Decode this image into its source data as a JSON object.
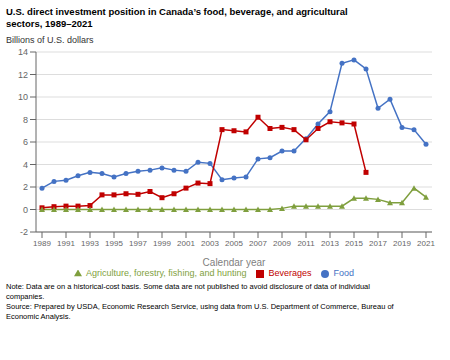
{
  "chart_data": {
    "type": "line",
    "title": "U.S. direct investment position in Canada’s food, beverage, and agricultural\nsectors, 1989–2021",
    "ylabel": "Billions of U.S. dollars",
    "xlabel": "Calendar year",
    "note": "Note: Data are on a historical-cost basis. Some data are not published to avoid disclosure of data of individual\ncompanies.\nSource: Prepared by USDA, Economic Research Service, using data from U.S. Department of Commerce, Bureau of\nEconomic Analysis.",
    "x": [
      1989,
      1990,
      1991,
      1992,
      1993,
      1994,
      1995,
      1996,
      1997,
      1998,
      1999,
      2000,
      2001,
      2002,
      2003,
      2004,
      2005,
      2006,
      2007,
      2008,
      2009,
      2010,
      2011,
      2012,
      2013,
      2014,
      2015,
      2016,
      2017,
      2018,
      2019,
      2020,
      2021
    ],
    "series": [
      {
        "name": "Food",
        "color": "#4472C4",
        "marker": "circle",
        "values": [
          1.9,
          2.5,
          2.6,
          3.0,
          3.3,
          3.2,
          2.9,
          3.2,
          3.4,
          3.5,
          3.7,
          3.5,
          3.4,
          4.2,
          4.1,
          2.65,
          2.8,
          2.9,
          4.5,
          4.6,
          5.2,
          5.2,
          6.3,
          7.6,
          8.7,
          13.0,
          13.3,
          12.5,
          9.0,
          9.8,
          7.3,
          7.1,
          5.8
        ]
      },
      {
        "name": "Beverages",
        "color": "#C00000",
        "marker": "square",
        "values": [
          0.15,
          0.25,
          0.3,
          0.3,
          0.35,
          1.3,
          1.3,
          1.4,
          1.35,
          1.6,
          1.05,
          1.4,
          1.9,
          2.35,
          2.3,
          7.1,
          7.0,
          6.9,
          8.2,
          7.2,
          7.3,
          7.1,
          6.2,
          7.2,
          7.8,
          7.7,
          7.6,
          3.3,
          null,
          null,
          null,
          null,
          null
        ]
      },
      {
        "name": "Agriculture, forestry, fishing, and hunting",
        "color": "#7F9F3E",
        "marker": "triangle",
        "values": [
          0.0,
          0.0,
          0.0,
          0.0,
          0.0,
          0.0,
          0.0,
          0.0,
          0.0,
          0.0,
          0.0,
          0.0,
          0.0,
          0.0,
          0.0,
          0.0,
          0.0,
          0.0,
          0.0,
          0.0,
          0.1,
          0.3,
          0.3,
          0.3,
          0.3,
          0.3,
          1.0,
          1.0,
          0.9,
          0.6,
          0.6,
          1.9,
          1.1
        ]
      }
    ],
    "xlim": [
      1988.5,
      2021.5
    ],
    "xticks": [
      1989,
      1991,
      1993,
      1995,
      1997,
      1999,
      2001,
      2003,
      2005,
      2007,
      2009,
      2011,
      2013,
      2015,
      2017,
      2019,
      2021
    ],
    "ylim": [
      -2,
      14
    ],
    "yticks": [
      -2,
      0,
      2,
      4,
      6,
      8,
      10,
      12,
      14
    ],
    "grid": true,
    "legend": "bottom"
  }
}
